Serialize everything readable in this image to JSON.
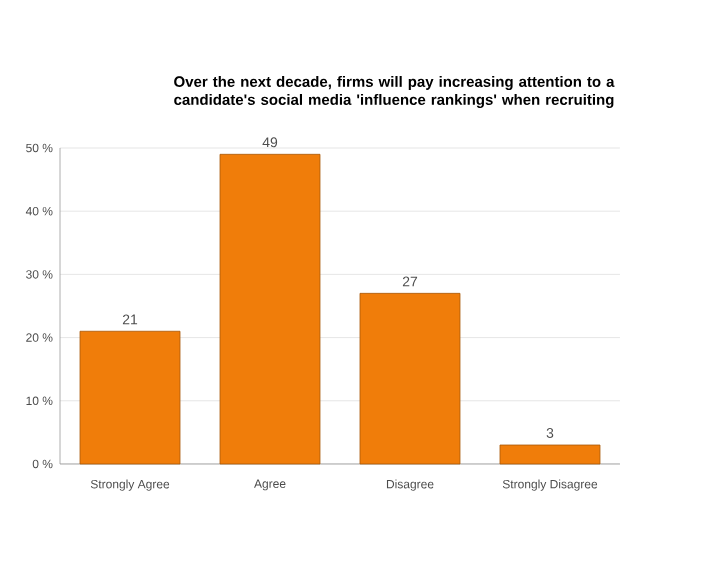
{
  "chart_data": {
    "type": "bar",
    "title": "Over the next decade, firms will pay increasing attention to a candidate's social media 'influence rankings' when recruiting",
    "categories": [
      "Strongly Agree",
      "Agree",
      "Disagree",
      "Strongly Disagree"
    ],
    "values": [
      21,
      49,
      27,
      3
    ],
    "color": "#f07d0a",
    "ylim": [
      0,
      50
    ],
    "yticks": [
      {
        "value": 0,
        "label": "0 %"
      },
      {
        "value": 10,
        "label": "10 %"
      },
      {
        "value": 20,
        "label": "20 %"
      },
      {
        "value": 30,
        "label": "30 %"
      },
      {
        "value": 40,
        "label": "40 %"
      },
      {
        "value": 50,
        "label": "50 %"
      }
    ],
    "grid": "y",
    "data_labels": true
  }
}
